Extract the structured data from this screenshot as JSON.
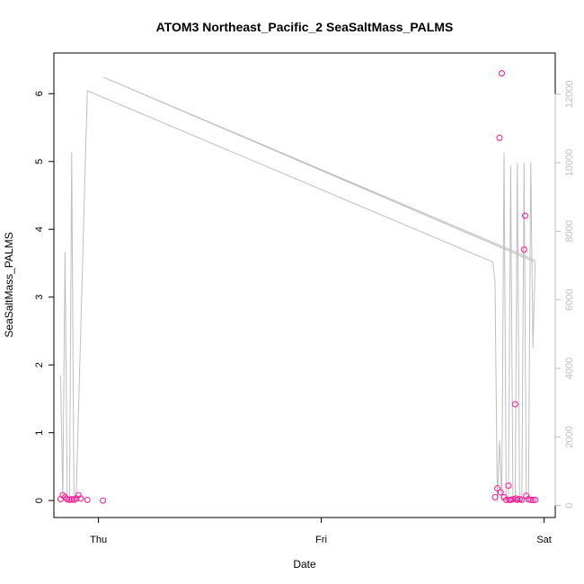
{
  "chart_data": {
    "type": "scatter",
    "title": "ATOM3 Northeast_Pacific_2 SeaSaltMass_PALMS",
    "xlabel": "Date",
    "ylabel": "SeaSaltMass_PALMS",
    "x_ticks": [
      {
        "label": "Thu",
        "value": 0.0
      },
      {
        "label": "Fri",
        "value": 1.0
      },
      {
        "label": "Sat",
        "value": 2.0
      }
    ],
    "y_ticks": [
      0,
      1,
      2,
      3,
      4,
      5,
      6
    ],
    "y2_ticks": [
      0,
      2000,
      4000,
      6000,
      8000,
      10000,
      12000
    ],
    "xlim": [
      -0.2,
      2.05
    ],
    "ylim": [
      -0.25,
      6.6
    ],
    "y2lim": [
      -350,
      13200
    ],
    "grid": false,
    "series": [
      {
        "type": "scatter",
        "axis": "left",
        "color": "#ff1493",
        "points": [
          [
            -0.17,
            0.02
          ],
          [
            -0.16,
            0.08
          ],
          [
            -0.15,
            0.05
          ],
          [
            -0.14,
            0.02
          ],
          [
            -0.13,
            0.01
          ],
          [
            -0.12,
            0.02
          ],
          [
            -0.11,
            0.01
          ],
          [
            -0.1,
            0.03
          ],
          [
            -0.09,
            0.08
          ],
          [
            -0.08,
            0.03
          ],
          [
            -0.05,
            0.01
          ],
          [
            0.02,
            0.0
          ],
          [
            1.78,
            0.05
          ],
          [
            1.79,
            0.18
          ],
          [
            1.8,
            5.35
          ],
          [
            1.805,
            0.12
          ],
          [
            1.81,
            6.3
          ],
          [
            1.82,
            0.05
          ],
          [
            1.83,
            0.01
          ],
          [
            1.84,
            0.22
          ],
          [
            1.845,
            0.01
          ],
          [
            1.85,
            0.01
          ],
          [
            1.86,
            0.02
          ],
          [
            1.87,
            1.42
          ],
          [
            1.875,
            0.03
          ],
          [
            1.88,
            0.01
          ],
          [
            1.89,
            0.02
          ],
          [
            1.9,
            0.01
          ],
          [
            1.91,
            3.7
          ],
          [
            1.915,
            4.2
          ],
          [
            1.92,
            0.07
          ],
          [
            1.93,
            0.02
          ],
          [
            1.94,
            0.01
          ],
          [
            1.95,
            0.01
          ],
          [
            1.96,
            0.01
          ]
        ]
      },
      {
        "type": "line",
        "axis": "right",
        "color": "#bebebe",
        "points": [
          [
            -0.17,
            3800
          ],
          [
            -0.16,
            200
          ],
          [
            -0.15,
            7400
          ],
          [
            -0.14,
            100
          ],
          [
            -0.13,
            200
          ],
          [
            -0.12,
            10300
          ],
          [
            -0.11,
            100
          ],
          [
            -0.1,
            300
          ],
          [
            -0.05,
            12100
          ],
          [
            1.77,
            7100
          ],
          [
            1.78,
            6500
          ],
          [
            1.79,
            100
          ],
          [
            1.8,
            1900
          ],
          [
            1.81,
            100
          ],
          [
            1.82,
            10300
          ],
          [
            1.83,
            100
          ],
          [
            1.84,
            100
          ],
          [
            1.85,
            9900
          ],
          [
            1.86,
            100
          ],
          [
            1.87,
            100
          ],
          [
            1.88,
            10000
          ],
          [
            1.89,
            100
          ],
          [
            1.9,
            100
          ],
          [
            1.91,
            10000
          ],
          [
            1.92,
            100
          ],
          [
            1.93,
            100
          ],
          [
            1.94,
            10000
          ],
          [
            1.95,
            4600
          ],
          [
            1.96,
            7100
          ],
          [
            0.02,
            12500
          ],
          [
            1.96,
            7150
          ]
        ]
      }
    ]
  }
}
